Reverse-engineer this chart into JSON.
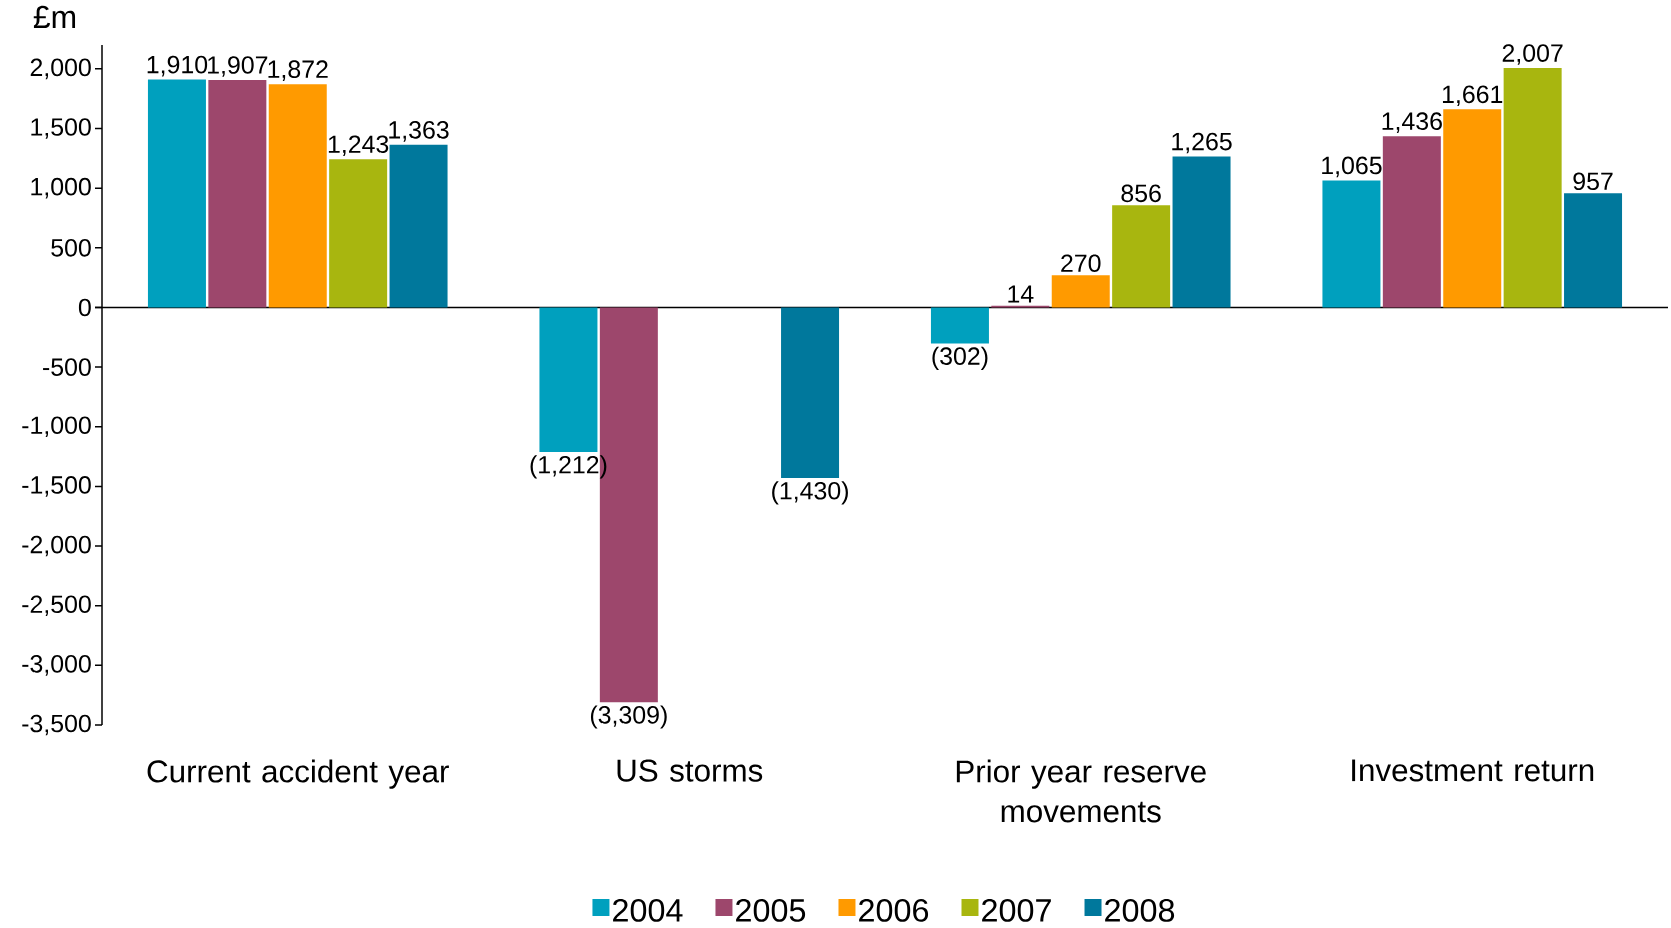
{
  "chart_data": {
    "type": "bar",
    "ylabel": "£m",
    "categories": [
      "Current accident year",
      "US storms",
      "Prior year reserve movements",
      "Investment return"
    ],
    "series": [
      {
        "name": "2004",
        "color": "#00A0BE",
        "values": [
          1910,
          -1212,
          -302,
          1065
        ],
        "value_labels": [
          "1,910",
          "(1,212)",
          "(302)",
          "1,065"
        ]
      },
      {
        "name": "2005",
        "color": "#9D476C",
        "values": [
          1907,
          -3309,
          14,
          1436
        ],
        "value_labels": [
          "1,907",
          "(3,309)",
          "14",
          "1,436"
        ]
      },
      {
        "name": "2006",
        "color": "#FF9A00",
        "values": [
          1872,
          null,
          270,
          1661
        ],
        "value_labels": [
          "1,872",
          null,
          "270",
          "1,661"
        ]
      },
      {
        "name": "2007",
        "color": "#A8B60F",
        "values": [
          1243,
          null,
          856,
          2007
        ],
        "value_labels": [
          "1,243",
          null,
          "856",
          "2,007"
        ]
      },
      {
        "name": "2008",
        "color": "#00789C",
        "values": [
          1363,
          -1430,
          1265,
          957
        ],
        "value_labels": [
          "1,363",
          "(1,430)",
          "1,265",
          "957"
        ]
      }
    ],
    "ylim": [
      -3500,
      2200
    ],
    "yticks": [
      {
        "value": -3500,
        "label": "-3,500"
      },
      {
        "value": -3000,
        "label": "-3,000"
      },
      {
        "value": -2500,
        "label": "-2,500"
      },
      {
        "value": -2000,
        "label": "-2,000"
      },
      {
        "value": -1500,
        "label": "-1,500"
      },
      {
        "value": -1000,
        "label": "-1,000"
      },
      -500,
      0,
      500,
      {
        "value": 1000,
        "label": "1,000"
      },
      {
        "value": 1500,
        "label": "1,500"
      },
      {
        "value": 2000,
        "label": "2,000"
      }
    ],
    "legend": "bottom"
  }
}
